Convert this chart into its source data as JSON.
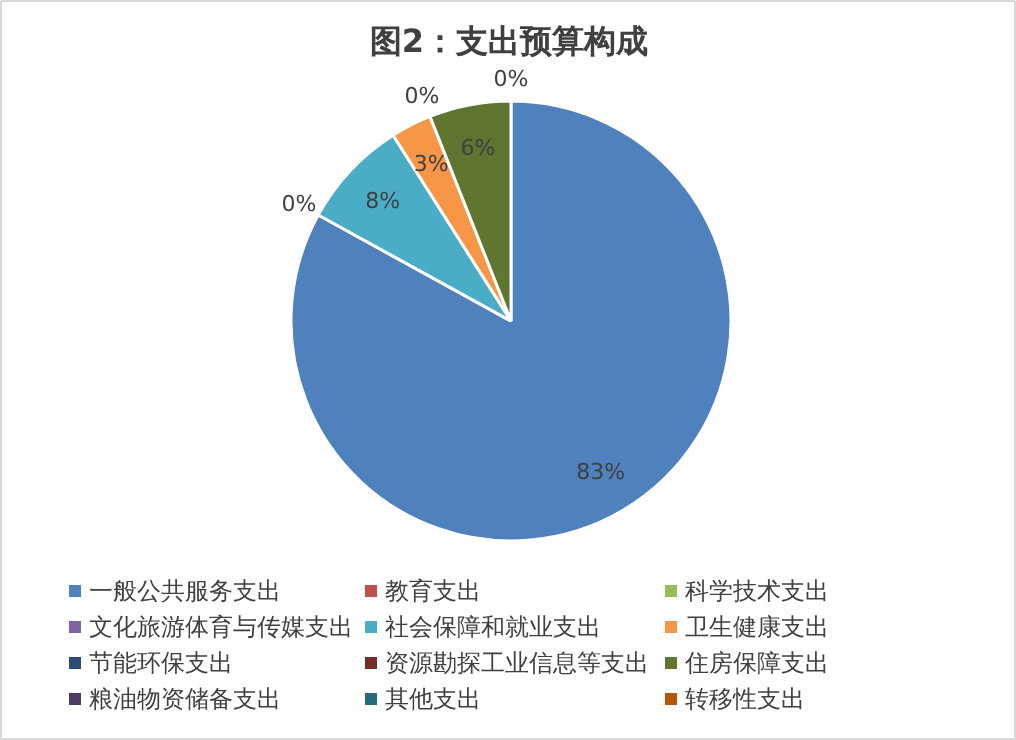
{
  "chart_data": {
    "type": "pie",
    "title": "图2：支出预算构成",
    "categories": [
      "一般公共服务支出",
      "教育支出",
      "科学技术支出",
      "文化旅游体育与传媒支出",
      "社会保障和就业支出",
      "卫生健康支出",
      "节能环保支出",
      "资源勘探工业信息等支出",
      "住房保障支出",
      "粮油物资储备支出",
      "其他支出",
      "转移性支出"
    ],
    "values": [
      83,
      0,
      0,
      0,
      8,
      3,
      0,
      0,
      6,
      0,
      0,
      0
    ],
    "value_labels": [
      "83%",
      null,
      null,
      "0%",
      "8%",
      "3%",
      null,
      "0%",
      "6%",
      null,
      null,
      "0%"
    ],
    "colors": [
      "#4f81bd",
      "#c0504d",
      "#9bbb59",
      "#8064a2",
      "#4bacc6",
      "#f79646",
      "#2c4d75",
      "#772c2a",
      "#5f7530",
      "#4d3b62",
      "#276a7c",
      "#b65708"
    ],
    "legend": "bottom"
  }
}
